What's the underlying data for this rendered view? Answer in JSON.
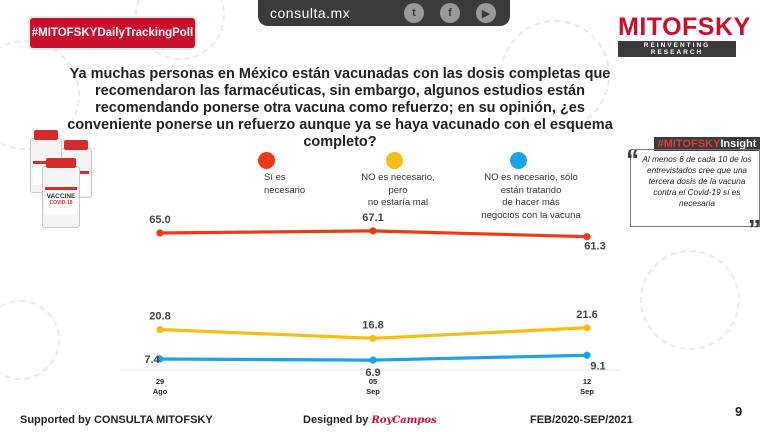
{
  "header": {
    "hashtag": "#MITOFSKYDailyTrackingPoll",
    "site": "consulta.mx",
    "social_icons": [
      "twitter-icon",
      "facebook-icon",
      "youtube-icon"
    ],
    "brand": "MITOFSKY",
    "brand_tagline": "REINVENTING RESEARCH"
  },
  "question": "Ya muchas personas en México están vacunadas con las dosis completas que recomendaron las farmacéuticas, sin embargo, algunos estudios están recomendando ponerse otra vacuna como refuerzo; en su opinión, ¿es conveniente ponerse un refuerzo aunque ya se haya vacunado con el esquema completo?",
  "illustration": {
    "vial_text": "VACCINE",
    "vial_subtext": "COVID-19"
  },
  "insight": {
    "hashtag_prefix": "#MITOFSKY",
    "hashtag_suffix": "Insight",
    "text": "Al menos 6 de cada 10 de los entrevistados cree que una tercera dosis de la vacuna contra el Covid-19 sí es necesaria"
  },
  "chart_data": {
    "type": "line",
    "title": "",
    "x": [
      "29 Ago",
      "05 Sep",
      "12 Sep"
    ],
    "x_labels": [
      {
        "day": "29",
        "month": "Ago"
      },
      {
        "day": "05",
        "month": "Sep"
      },
      {
        "day": "12",
        "month": "Sep"
      }
    ],
    "series": [
      {
        "name": "Sí es necesario",
        "legend_lines": [
          "Sí es",
          "necesario"
        ],
        "color": "#ee3a14",
        "values": [
          65.0,
          67.1,
          61.3
        ]
      },
      {
        "name": "NO es necesario, pero no estaría mal",
        "legend_lines": [
          "NO es necesario,",
          "pero",
          "no estaría mal"
        ],
        "color": "#f7bd15",
        "values": [
          20.8,
          16.8,
          21.6
        ]
      },
      {
        "name": "NO es necesario, sólo están tratando de hacer más negocios con la vacuna",
        "legend_lines": [
          "NO es necesario, sólo",
          "están tratando",
          "de hacer más",
          "negocios con la vacuna"
        ],
        "color": "#1aa3e8",
        "values": [
          7.4,
          6.9,
          9.1
        ]
      }
    ],
    "label_format": "one_decimal"
  },
  "footer": {
    "supported": "Supported by   CONSULTA   MITOFSKY",
    "designed": "Designed by",
    "designer": "RoyCampos",
    "period": "FEB/2020-SEP/2021",
    "page": "9"
  }
}
